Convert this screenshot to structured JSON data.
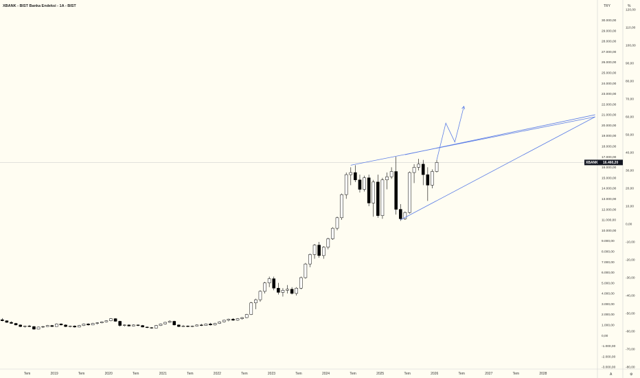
{
  "header": {
    "title": "XBANK - BIST Banka Endeksi - 1A - BIST"
  },
  "axes": {
    "left_currency": "TRY",
    "right_label": "%",
    "y_min": -3000,
    "y_max": 31000,
    "right_min": -80,
    "right_max": 120,
    "x_min": "2018-01",
    "x_max": "2028-12",
    "left_ticks": [
      {
        "v": -3000,
        "label": "-3.000,00"
      },
      {
        "v": -2000,
        "label": "-2.000,00"
      },
      {
        "v": -1000,
        "label": "-1.000,00"
      },
      {
        "v": 0,
        "label": "0,00"
      },
      {
        "v": 1000,
        "label": "1.000,00"
      },
      {
        "v": 2000,
        "label": "2.000,00"
      },
      {
        "v": 3000,
        "label": "3.000,00"
      },
      {
        "v": 4000,
        "label": "4.000,00"
      },
      {
        "v": 5000,
        "label": "5.000,00"
      },
      {
        "v": 6000,
        "label": "6.000,00"
      },
      {
        "v": 7000,
        "label": "7.000,00"
      },
      {
        "v": 8000,
        "label": "8.000,00"
      },
      {
        "v": 9000,
        "label": "9.000,00"
      },
      {
        "v": 10000,
        "label": "10.000,00"
      },
      {
        "v": 11000,
        "label": "11.000,00"
      },
      {
        "v": 12000,
        "label": "12.000,00"
      },
      {
        "v": 13000,
        "label": "13.000,00"
      },
      {
        "v": 14000,
        "label": "14.000,00"
      },
      {
        "v": 15000,
        "label": "15.000,00"
      },
      {
        "v": 16000,
        "label": "16.000,00"
      },
      {
        "v": 17000,
        "label": "17.000,00"
      },
      {
        "v": 18000,
        "label": "18.000,00"
      },
      {
        "v": 19000,
        "label": "19.000,00"
      },
      {
        "v": 20000,
        "label": "20.000,00"
      },
      {
        "v": 21000,
        "label": "21.000,00"
      },
      {
        "v": 22000,
        "label": "22.000,00"
      },
      {
        "v": 23000,
        "label": "23.000,00"
      },
      {
        "v": 24000,
        "label": "24.000,00"
      },
      {
        "v": 25000,
        "label": "25.000,00"
      },
      {
        "v": 26000,
        "label": "26.000,00"
      },
      {
        "v": 27000,
        "label": "27.000,00"
      },
      {
        "v": 28000,
        "label": "28.000,00"
      },
      {
        "v": 29000,
        "label": "29.000,00"
      },
      {
        "v": 30000,
        "label": "30.000,00"
      }
    ],
    "right_ticks": [
      {
        "v": -80,
        "label": "-80,00"
      },
      {
        "v": -70,
        "label": "-70,00"
      },
      {
        "v": -60,
        "label": "-60,00"
      },
      {
        "v": -50,
        "label": "-50,00"
      },
      {
        "v": -40,
        "label": "-40,00"
      },
      {
        "v": -30,
        "label": "-30,00"
      },
      {
        "v": -20,
        "label": "-20,00"
      },
      {
        "v": -10,
        "label": "-10,00"
      },
      {
        "v": 0,
        "label": "0,00"
      },
      {
        "v": 10,
        "label": "10,00"
      },
      {
        "v": 20,
        "label": "20,00"
      },
      {
        "v": 30,
        "label": "30,00"
      },
      {
        "v": 40,
        "label": "40,00"
      },
      {
        "v": 50,
        "label": "50,00"
      },
      {
        "v": 60,
        "label": "60,00"
      },
      {
        "v": 70,
        "label": "70,00"
      },
      {
        "v": 80,
        "label": "80,00"
      },
      {
        "v": 90,
        "label": "90,00"
      },
      {
        "v": 100,
        "label": "100,00"
      },
      {
        "v": 110,
        "label": "110,00"
      },
      {
        "v": 120,
        "label": "120,00"
      }
    ],
    "x_ticks": [
      {
        "t": "2018-07",
        "label": "Tem"
      },
      {
        "t": "2019-01",
        "label": "2019"
      },
      {
        "t": "2019-07",
        "label": "Tem"
      },
      {
        "t": "2020-01",
        "label": "2020"
      },
      {
        "t": "2020-07",
        "label": "Tem"
      },
      {
        "t": "2021-01",
        "label": "2021"
      },
      {
        "t": "2021-07",
        "label": "Tem"
      },
      {
        "t": "2022-01",
        "label": "2022"
      },
      {
        "t": "2022-07",
        "label": "Tem"
      },
      {
        "t": "2023-01",
        "label": "2023"
      },
      {
        "t": "2023-07",
        "label": "Tem"
      },
      {
        "t": "2024-01",
        "label": "2024"
      },
      {
        "t": "2024-07",
        "label": "Tem"
      },
      {
        "t": "2025-01",
        "label": "2025"
      },
      {
        "t": "2025-07",
        "label": "Tem"
      },
      {
        "t": "2026-01",
        "label": "2026"
      },
      {
        "t": "2026-07",
        "label": "Tem"
      },
      {
        "t": "2027-01",
        "label": "2027"
      },
      {
        "t": "2027-07",
        "label": "Tem"
      },
      {
        "t": "2028-01",
        "label": "2028"
      }
    ],
    "corner_left": "A",
    "corner_right": "⚙"
  },
  "price_tag": {
    "symbol": "XBANK",
    "value_label": "16.460,20",
    "value": 16460
  },
  "colors": {
    "background": "#fffdf2",
    "trendline": "#5b7de6",
    "tag": "#131722",
    "price_line": "#c5c5c5",
    "up_fill": "#ffffff",
    "down_fill": "#000000",
    "candle_border": "#000000"
  },
  "chart_data": {
    "type": "candlestick",
    "interval": "monthly",
    "series": [
      {
        "t": "2018-01",
        "o": 1500,
        "h": 1650,
        "l": 1350,
        "c": 1400
      },
      {
        "t": "2018-02",
        "o": 1400,
        "h": 1450,
        "l": 1200,
        "c": 1250
      },
      {
        "t": "2018-03",
        "o": 1250,
        "h": 1350,
        "l": 1100,
        "c": 1150
      },
      {
        "t": "2018-04",
        "o": 1150,
        "h": 1200,
        "l": 950,
        "c": 1000
      },
      {
        "t": "2018-05",
        "o": 1000,
        "h": 1050,
        "l": 800,
        "c": 850
      },
      {
        "t": "2018-06",
        "o": 850,
        "h": 950,
        "l": 750,
        "c": 900
      },
      {
        "t": "2018-07",
        "o": 900,
        "h": 1000,
        "l": 800,
        "c": 850
      },
      {
        "t": "2018-08",
        "o": 850,
        "h": 900,
        "l": 550,
        "c": 600
      },
      {
        "t": "2018-09",
        "o": 600,
        "h": 850,
        "l": 580,
        "c": 800
      },
      {
        "t": "2018-10",
        "o": 800,
        "h": 900,
        "l": 720,
        "c": 850
      },
      {
        "t": "2018-11",
        "o": 850,
        "h": 1000,
        "l": 820,
        "c": 950
      },
      {
        "t": "2018-12",
        "o": 950,
        "h": 1000,
        "l": 820,
        "c": 850
      },
      {
        "t": "2019-01",
        "o": 850,
        "h": 1150,
        "l": 830,
        "c": 1100
      },
      {
        "t": "2019-02",
        "o": 1100,
        "h": 1150,
        "l": 950,
        "c": 1000
      },
      {
        "t": "2019-03",
        "o": 1000,
        "h": 1050,
        "l": 800,
        "c": 850
      },
      {
        "t": "2019-04",
        "o": 850,
        "h": 950,
        "l": 780,
        "c": 900
      },
      {
        "t": "2019-05",
        "o": 900,
        "h": 950,
        "l": 750,
        "c": 800
      },
      {
        "t": "2019-06",
        "o": 800,
        "h": 1000,
        "l": 780,
        "c": 950
      },
      {
        "t": "2019-07",
        "o": 950,
        "h": 1150,
        "l": 900,
        "c": 1100
      },
      {
        "t": "2019-08",
        "o": 1100,
        "h": 1150,
        "l": 950,
        "c": 1000
      },
      {
        "t": "2019-09",
        "o": 1000,
        "h": 1200,
        "l": 980,
        "c": 1150
      },
      {
        "t": "2019-10",
        "o": 1150,
        "h": 1250,
        "l": 1050,
        "c": 1200
      },
      {
        "t": "2019-11",
        "o": 1200,
        "h": 1350,
        "l": 1150,
        "c": 1300
      },
      {
        "t": "2019-12",
        "o": 1300,
        "h": 1450,
        "l": 1250,
        "c": 1400
      },
      {
        "t": "2020-01",
        "o": 1400,
        "h": 1650,
        "l": 1350,
        "c": 1600
      },
      {
        "t": "2020-02",
        "o": 1600,
        "h": 1650,
        "l": 1300,
        "c": 1350
      },
      {
        "t": "2020-03",
        "o": 1350,
        "h": 1400,
        "l": 850,
        "c": 950
      },
      {
        "t": "2020-04",
        "o": 950,
        "h": 1050,
        "l": 850,
        "c": 1000
      },
      {
        "t": "2020-05",
        "o": 1000,
        "h": 1050,
        "l": 850,
        "c": 900
      },
      {
        "t": "2020-06",
        "o": 900,
        "h": 1050,
        "l": 880,
        "c": 1000
      },
      {
        "t": "2020-07",
        "o": 1000,
        "h": 1050,
        "l": 880,
        "c": 950
      },
      {
        "t": "2020-08",
        "o": 950,
        "h": 1000,
        "l": 780,
        "c": 800
      },
      {
        "t": "2020-09",
        "o": 800,
        "h": 850,
        "l": 700,
        "c": 750
      },
      {
        "t": "2020-10",
        "o": 750,
        "h": 800,
        "l": 650,
        "c": 700
      },
      {
        "t": "2020-11",
        "o": 700,
        "h": 1000,
        "l": 690,
        "c": 950
      },
      {
        "t": "2020-12",
        "o": 950,
        "h": 1150,
        "l": 900,
        "c": 1100
      },
      {
        "t": "2021-01",
        "o": 1100,
        "h": 1300,
        "l": 1050,
        "c": 1250
      },
      {
        "t": "2021-02",
        "o": 1250,
        "h": 1450,
        "l": 1200,
        "c": 1350
      },
      {
        "t": "2021-03",
        "o": 1350,
        "h": 1400,
        "l": 950,
        "c": 1000
      },
      {
        "t": "2021-04",
        "o": 1000,
        "h": 1050,
        "l": 800,
        "c": 850
      },
      {
        "t": "2021-05",
        "o": 850,
        "h": 1000,
        "l": 820,
        "c": 900
      },
      {
        "t": "2021-06",
        "o": 900,
        "h": 950,
        "l": 800,
        "c": 850
      },
      {
        "t": "2021-07",
        "o": 850,
        "h": 950,
        "l": 800,
        "c": 900
      },
      {
        "t": "2021-08",
        "o": 900,
        "h": 1050,
        "l": 880,
        "c": 1000
      },
      {
        "t": "2021-09",
        "o": 1000,
        "h": 1100,
        "l": 900,
        "c": 950
      },
      {
        "t": "2021-10",
        "o": 950,
        "h": 1150,
        "l": 930,
        "c": 1100
      },
      {
        "t": "2021-11",
        "o": 1100,
        "h": 1200,
        "l": 950,
        "c": 1000
      },
      {
        "t": "2021-12",
        "o": 1000,
        "h": 1200,
        "l": 950,
        "c": 1150
      },
      {
        "t": "2022-01",
        "o": 1150,
        "h": 1350,
        "l": 1100,
        "c": 1300
      },
      {
        "t": "2022-02",
        "o": 1300,
        "h": 1500,
        "l": 1250,
        "c": 1450
      },
      {
        "t": "2022-03",
        "o": 1450,
        "h": 1600,
        "l": 1350,
        "c": 1550
      },
      {
        "t": "2022-04",
        "o": 1550,
        "h": 1650,
        "l": 1400,
        "c": 1450
      },
      {
        "t": "2022-05",
        "o": 1450,
        "h": 1650,
        "l": 1400,
        "c": 1600
      },
      {
        "t": "2022-06",
        "o": 1600,
        "h": 1750,
        "l": 1500,
        "c": 1700
      },
      {
        "t": "2022-07",
        "o": 1700,
        "h": 2050,
        "l": 1650,
        "c": 2000
      },
      {
        "t": "2022-08",
        "o": 2000,
        "h": 3200,
        "l": 1950,
        "c": 3100
      },
      {
        "t": "2022-09",
        "o": 3100,
        "h": 3500,
        "l": 2500,
        "c": 3400
      },
      {
        "t": "2022-10",
        "o": 3400,
        "h": 4300,
        "l": 3200,
        "c": 4200
      },
      {
        "t": "2022-11",
        "o": 4200,
        "h": 5100,
        "l": 4000,
        "c": 5000
      },
      {
        "t": "2022-12",
        "o": 5000,
        "h": 5600,
        "l": 4600,
        "c": 5400
      },
      {
        "t": "2023-01",
        "o": 5400,
        "h": 5600,
        "l": 4300,
        "c": 4500
      },
      {
        "t": "2023-02",
        "o": 4500,
        "h": 5000,
        "l": 3900,
        "c": 4100
      },
      {
        "t": "2023-03",
        "o": 4100,
        "h": 4500,
        "l": 3700,
        "c": 4300
      },
      {
        "t": "2023-04",
        "o": 4300,
        "h": 4800,
        "l": 4000,
        "c": 4400
      },
      {
        "t": "2023-05",
        "o": 4400,
        "h": 4600,
        "l": 3900,
        "c": 4000
      },
      {
        "t": "2023-06",
        "o": 4000,
        "h": 4600,
        "l": 3800,
        "c": 4500
      },
      {
        "t": "2023-07",
        "o": 4500,
        "h": 5600,
        "l": 4400,
        "c": 5500
      },
      {
        "t": "2023-08",
        "o": 5500,
        "h": 6900,
        "l": 5400,
        "c": 6800
      },
      {
        "t": "2023-09",
        "o": 6800,
        "h": 7800,
        "l": 6500,
        "c": 7700
      },
      {
        "t": "2023-10",
        "o": 7700,
        "h": 8700,
        "l": 7300,
        "c": 8600
      },
      {
        "t": "2023-11",
        "o": 8600,
        "h": 8900,
        "l": 7400,
        "c": 7600
      },
      {
        "t": "2023-12",
        "o": 7600,
        "h": 8500,
        "l": 7300,
        "c": 8400
      },
      {
        "t": "2024-01",
        "o": 8400,
        "h": 9300,
        "l": 8200,
        "c": 9200
      },
      {
        "t": "2024-02",
        "o": 9200,
        "h": 10300,
        "l": 9100,
        "c": 10200
      },
      {
        "t": "2024-03",
        "o": 10200,
        "h": 11300,
        "l": 10000,
        "c": 11200
      },
      {
        "t": "2024-04",
        "o": 11200,
        "h": 13500,
        "l": 11000,
        "c": 13400
      },
      {
        "t": "2024-05",
        "o": 13400,
        "h": 15500,
        "l": 13000,
        "c": 15300
      },
      {
        "t": "2024-06",
        "o": 15300,
        "h": 16000,
        "l": 14300,
        "c": 15500
      },
      {
        "t": "2024-07",
        "o": 15500,
        "h": 16200,
        "l": 14600,
        "c": 14800
      },
      {
        "t": "2024-08",
        "o": 14800,
        "h": 15300,
        "l": 13600,
        "c": 13900
      },
      {
        "t": "2024-09",
        "o": 13900,
        "h": 15200,
        "l": 13700,
        "c": 15000
      },
      {
        "t": "2024-10",
        "o": 15000,
        "h": 15300,
        "l": 12300,
        "c": 12600
      },
      {
        "t": "2024-11",
        "o": 12600,
        "h": 14800,
        "l": 11300,
        "c": 14600
      },
      {
        "t": "2024-12",
        "o": 14600,
        "h": 15300,
        "l": 11200,
        "c": 11400
      },
      {
        "t": "2025-01",
        "o": 11400,
        "h": 15000,
        "l": 11100,
        "c": 14800
      },
      {
        "t": "2025-02",
        "o": 14800,
        "h": 15500,
        "l": 13900,
        "c": 15100
      },
      {
        "t": "2025-03",
        "o": 15100,
        "h": 16000,
        "l": 14900,
        "c": 15600
      },
      {
        "t": "2025-04",
        "o": 15600,
        "h": 17000,
        "l": 11500,
        "c": 12000
      },
      {
        "t": "2025-05",
        "o": 12000,
        "h": 12500,
        "l": 10900,
        "c": 11100
      },
      {
        "t": "2025-06",
        "o": 11100,
        "h": 11800,
        "l": 11000,
        "c": 11700
      },
      {
        "t": "2025-07",
        "o": 11700,
        "h": 15600,
        "l": 11600,
        "c": 15500
      },
      {
        "t": "2025-08",
        "o": 15500,
        "h": 16300,
        "l": 14500,
        "c": 16000
      },
      {
        "t": "2025-09",
        "o": 16000,
        "h": 16800,
        "l": 15700,
        "c": 16300
      },
      {
        "t": "2025-10",
        "o": 16300,
        "h": 16700,
        "l": 14300,
        "c": 15300
      },
      {
        "t": "2025-11",
        "o": 15300,
        "h": 16000,
        "l": 12800,
        "c": 14300
      },
      {
        "t": "2025-12",
        "o": 14300,
        "h": 15800,
        "l": 14000,
        "c": 15600
      },
      {
        "t": "2026-01",
        "o": 15600,
        "h": 16700,
        "l": 15500,
        "c": 16460
      }
    ],
    "trendlines": [
      {
        "from": {
          "t": "2024-06",
          "v": 16200
        },
        "to": {
          "t": "2028-12",
          "v": 20800
        }
      },
      {
        "from": {
          "t": "2025-06",
          "v": 17200
        },
        "to": {
          "t": "2028-12",
          "v": 21000
        }
      },
      {
        "from": {
          "t": "2025-05",
          "v": 11000
        },
        "to": {
          "t": "2028-12",
          "v": 20800
        }
      }
    ],
    "projection": {
      "points": [
        {
          "t": "2026-01",
          "v": 16700
        },
        {
          "t": "2026-03",
          "v": 20200
        },
        {
          "t": "2026-05",
          "v": 18400
        },
        {
          "t": "2026-07",
          "v": 21800
        }
      ]
    }
  }
}
